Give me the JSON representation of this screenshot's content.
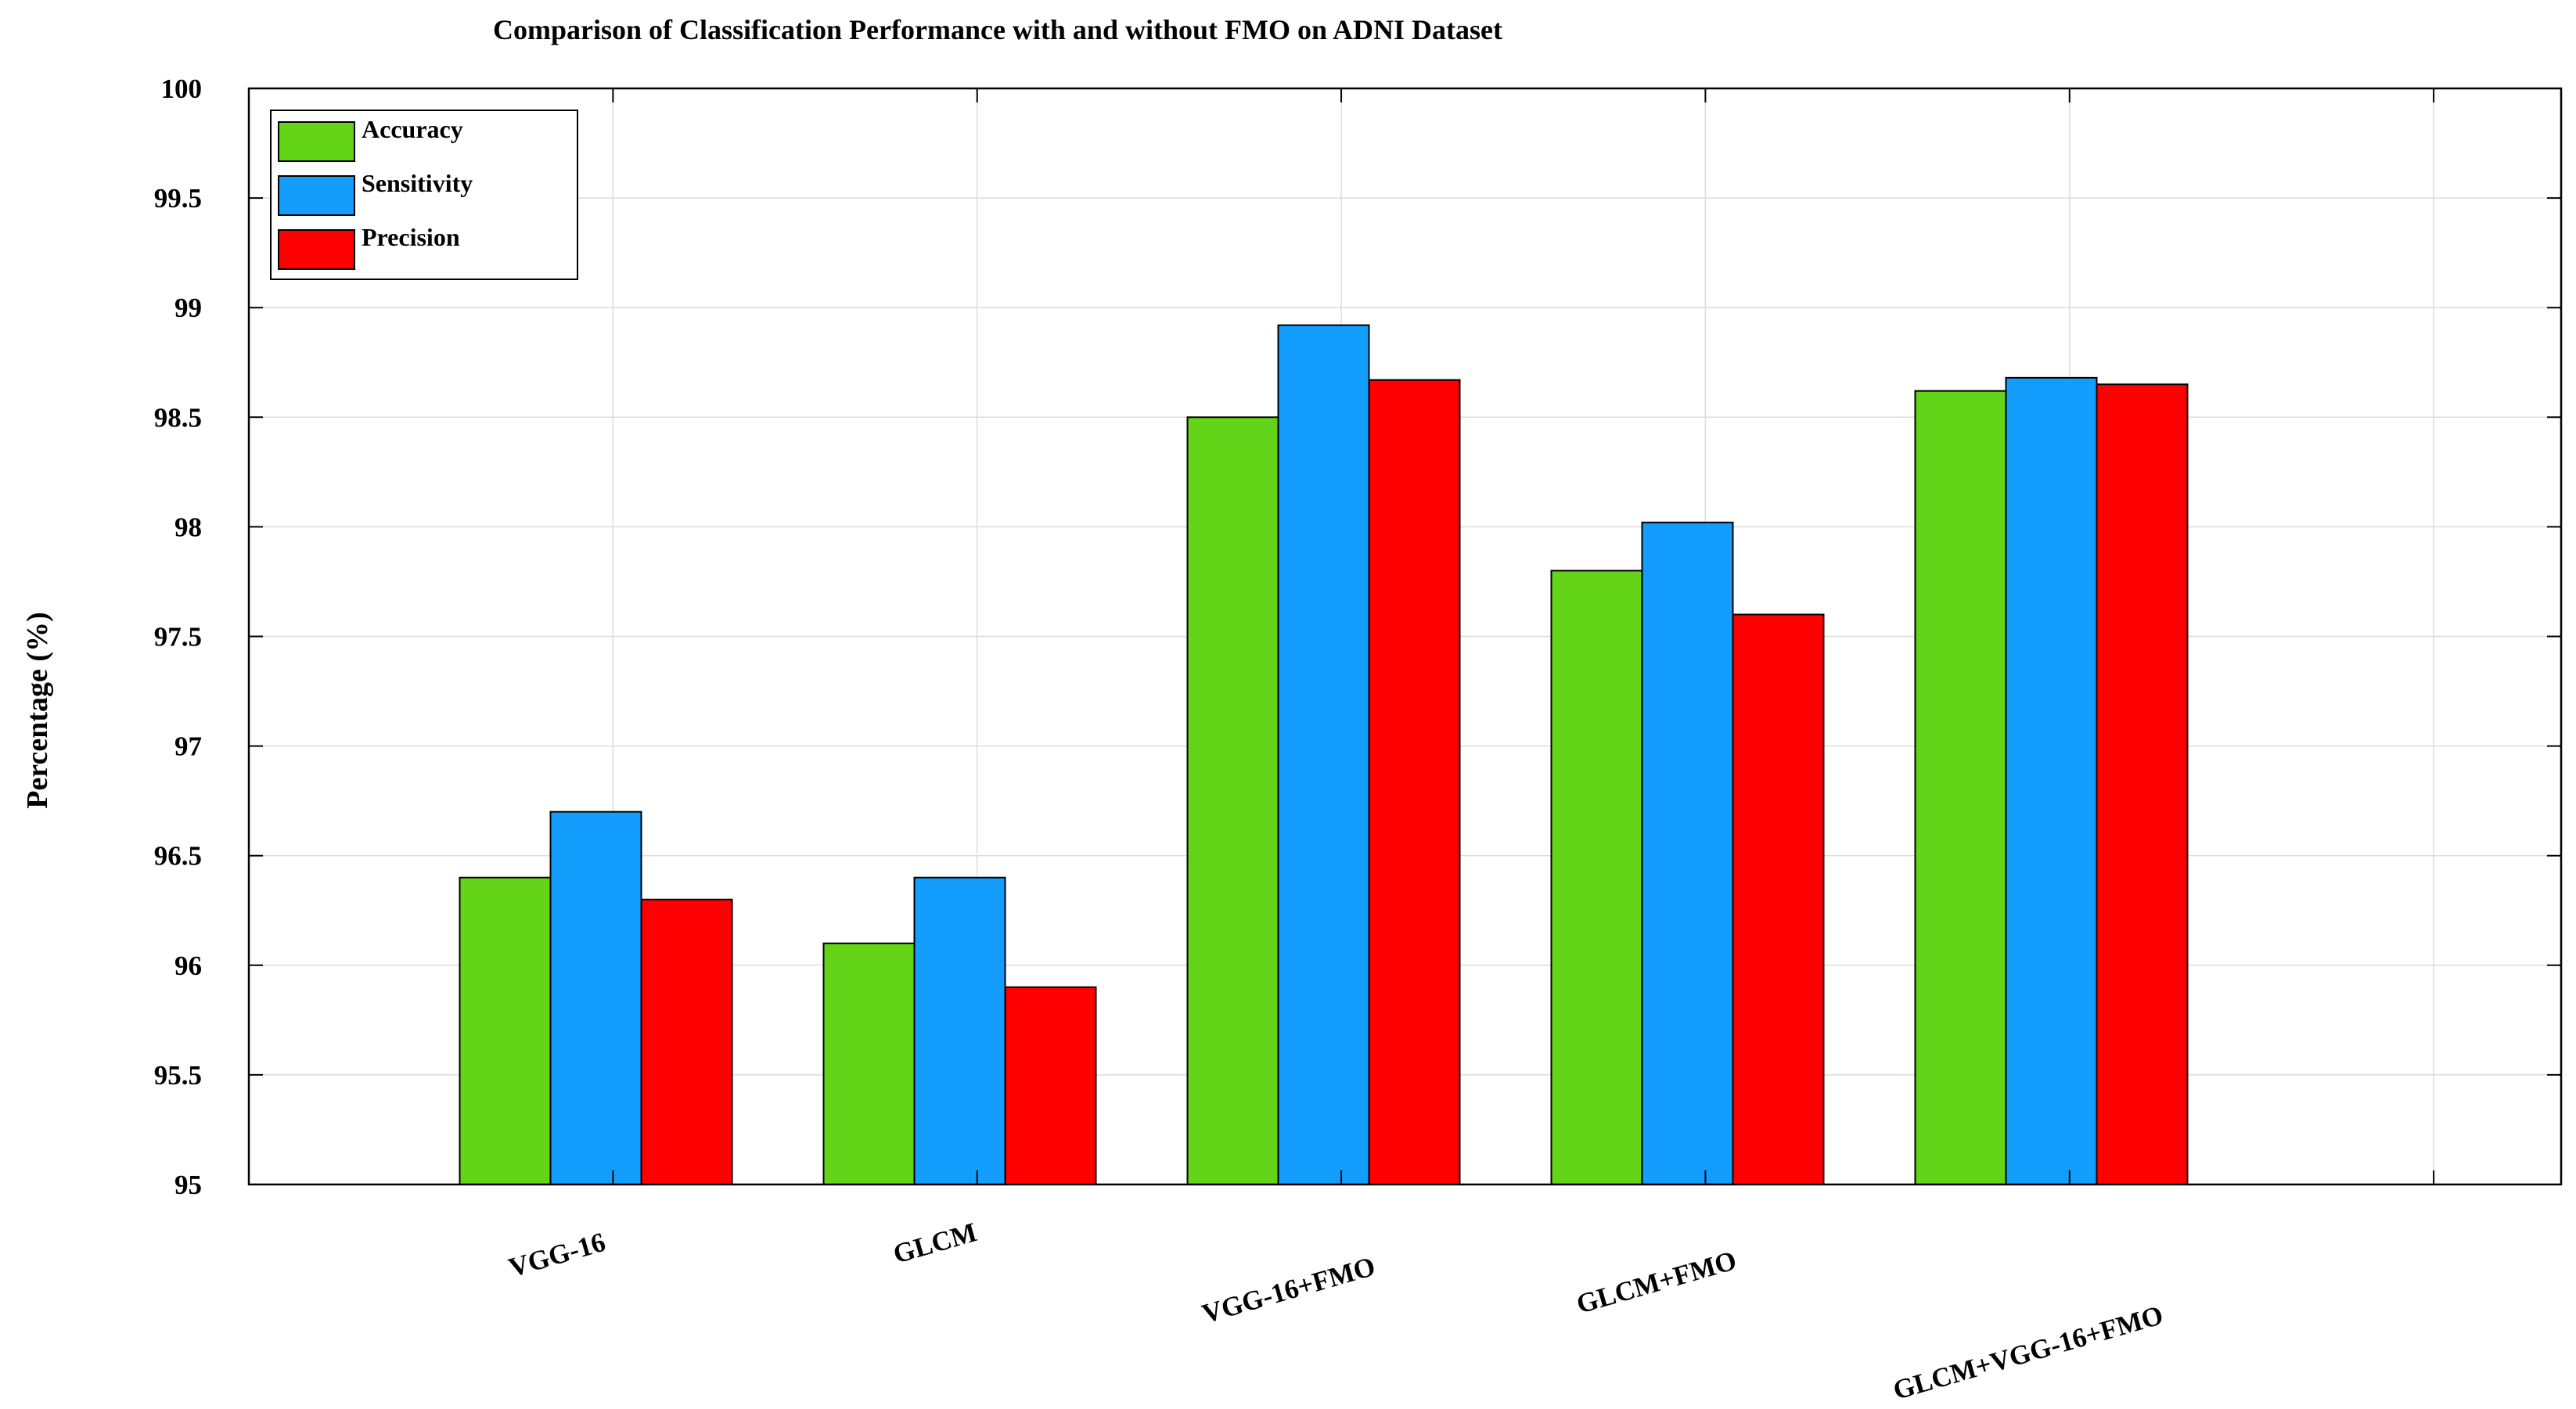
{
  "chart_data": {
    "type": "bar",
    "title": "Comparison of Classification Performance with and without FMO on ADNI Dataset",
    "xlabel": "",
    "ylabel": "Percentage (%)",
    "ylim": [
      95,
      100
    ],
    "yticks": [
      95,
      95.5,
      96,
      96.5,
      97,
      97.5,
      98,
      98.5,
      99,
      99.5,
      100
    ],
    "ytick_labels": [
      "95",
      "95.5",
      "96",
      "96.5",
      "97",
      "97.5",
      "98",
      "98.5",
      "99",
      "99.5",
      "100"
    ],
    "categories": [
      "VGG-16",
      "GLCM",
      "VGG-16+FMO",
      "GLCM+FMO",
      "GLCM+VGG-16+FMO"
    ],
    "series": [
      {
        "name": "Accuracy",
        "color": "#63D417",
        "values": [
          96.4,
          96.1,
          98.5,
          97.8,
          98.62
        ]
      },
      {
        "name": "Sensitivity",
        "color": "#139DFD",
        "values": [
          96.7,
          96.4,
          98.92,
          98.02,
          98.68
        ]
      },
      {
        "name": "Precision",
        "color": "#FF0000",
        "values": [
          96.3,
          95.9,
          98.67,
          97.6,
          98.65
        ]
      }
    ],
    "grid": true,
    "legend": "top-left"
  }
}
